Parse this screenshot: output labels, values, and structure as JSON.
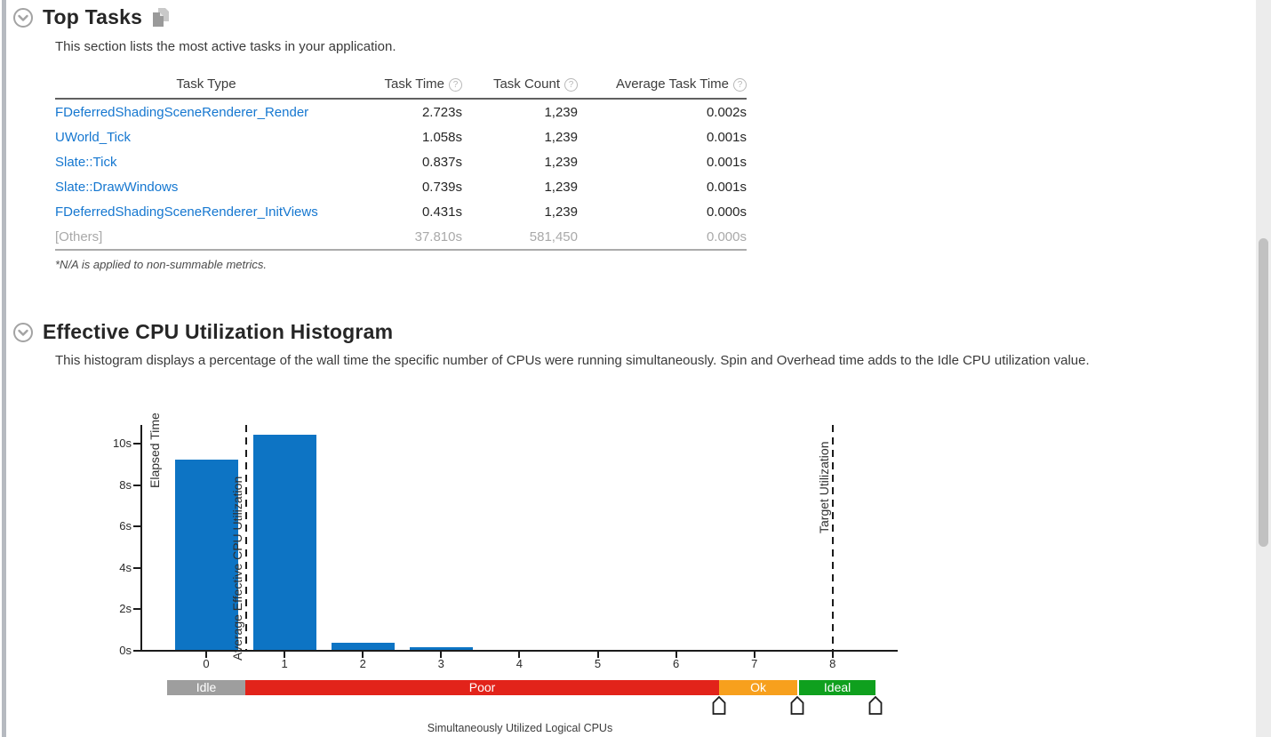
{
  "top_tasks": {
    "title": "Top Tasks",
    "description": "This section lists the most active tasks in your application.",
    "footnote": "*N/A is applied to non-summable metrics.",
    "columns": [
      {
        "label": "Task Type",
        "help": false
      },
      {
        "label": "Task Time",
        "help": true
      },
      {
        "label": "Task Count",
        "help": true
      },
      {
        "label": "Average Task Time",
        "help": true
      }
    ],
    "help_icon_char": "?",
    "rows": [
      {
        "task_type": "FDeferredShadingSceneRenderer_Render",
        "task_time": "2.723s",
        "task_count": "1,239",
        "avg_task_time": "0.002s",
        "muted": false
      },
      {
        "task_type": "UWorld_Tick",
        "task_time": "1.058s",
        "task_count": "1,239",
        "avg_task_time": "0.001s",
        "muted": false
      },
      {
        "task_type": "Slate::Tick",
        "task_time": "0.837s",
        "task_count": "1,239",
        "avg_task_time": "0.001s",
        "muted": false
      },
      {
        "task_type": "Slate::DrawWindows",
        "task_time": "0.739s",
        "task_count": "1,239",
        "avg_task_time": "0.001s",
        "muted": false
      },
      {
        "task_type": "FDeferredShadingSceneRenderer_InitViews",
        "task_time": "0.431s",
        "task_count": "1,239",
        "avg_task_time": "0.000s",
        "muted": false
      },
      {
        "task_type": "[Others]",
        "task_time": "37.810s",
        "task_count": "581,450",
        "avg_task_time": "0.000s",
        "muted": true
      }
    ]
  },
  "histogram": {
    "title": "Effective CPU Utilization Histogram",
    "description": "This histogram displays a percentage of the wall time the specific number of CPUs were running simultaneously. Spin and Overhead time adds to the Idle CPU utilization value.",
    "chart_data": {
      "type": "bar",
      "title": "Effective CPU Utilization Histogram",
      "xlabel": "Simultaneously Utilized Logical CPUs",
      "ylabel": "Elapsed Time",
      "x": [
        0,
        1,
        2,
        3,
        4,
        5,
        6,
        7,
        8
      ],
      "values_seconds": [
        9.2,
        10.4,
        0.35,
        0.13,
        0,
        0,
        0,
        0,
        0
      ],
      "y_ticks": [
        {
          "v": 0,
          "label": "0s"
        },
        {
          "v": 2,
          "label": "2s"
        },
        {
          "v": 4,
          "label": "4s"
        },
        {
          "v": 6,
          "label": "6s"
        },
        {
          "v": 8,
          "label": "8s"
        },
        {
          "v": 10,
          "label": "10s"
        }
      ],
      "ylim": [
        0,
        10.9
      ],
      "bar_color": "#0d74c4",
      "annotations": [
        {
          "label": "Average Effective CPU Utilization",
          "x": 0.51
        },
        {
          "label": "Target Utilization",
          "x": 8
        }
      ],
      "utilization_bands": [
        {
          "label": "Idle",
          "color": "#9e9e9e",
          "from": -0.5,
          "to": 0.5
        },
        {
          "label": "Poor",
          "color": "#e2231a",
          "from": 0.5,
          "to": 6.55
        },
        {
          "label": "Ok",
          "color": "#f7a01d",
          "from": 6.55,
          "to": 7.55
        },
        {
          "label": "Ideal",
          "color": "#0fa01e",
          "from": 7.57,
          "to": 8.55
        }
      ],
      "slider_positions": [
        6.55,
        7.55,
        8.55
      ],
      "grid": false,
      "legend": "none"
    }
  }
}
